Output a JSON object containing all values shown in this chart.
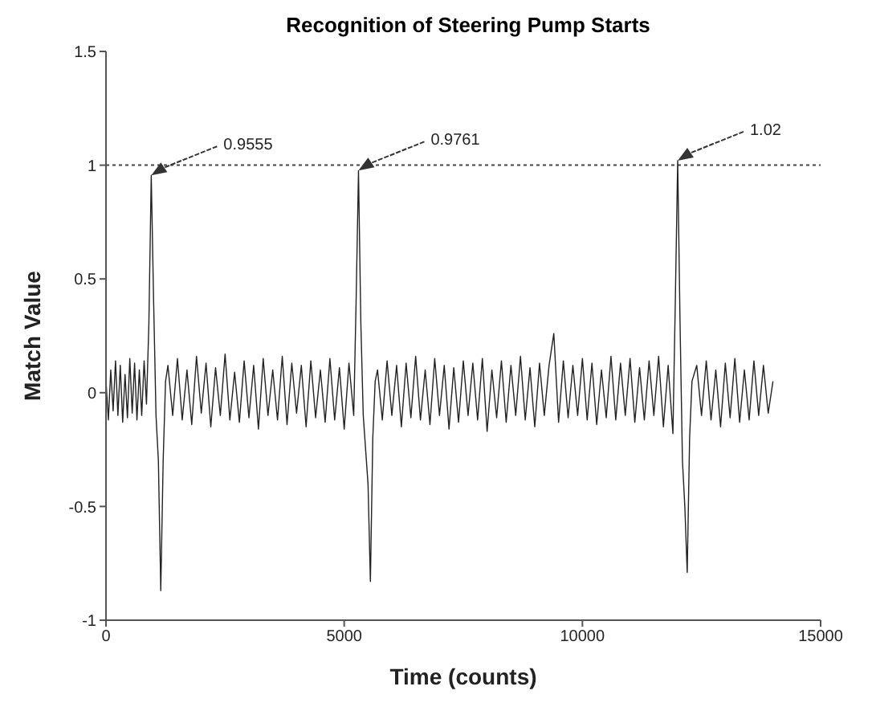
{
  "chart_data": {
    "type": "line",
    "title": "Recognition of Steering Pump Starts",
    "xlabel": "Time (counts)",
    "ylabel": "Match Value",
    "x": [
      0,
      50,
      100,
      150,
      200,
      250,
      300,
      350,
      400,
      450,
      500,
      550,
      600,
      650,
      700,
      750,
      800,
      850,
      900,
      950,
      1000,
      1050,
      1100,
      1150,
      1200,
      1250,
      1300,
      1400,
      1500,
      1600,
      1700,
      1800,
      1900,
      2000,
      2100,
      2200,
      2300,
      2400,
      2500,
      2600,
      2700,
      2800,
      2900,
      3000,
      3100,
      3200,
      3300,
      3400,
      3500,
      3600,
      3700,
      3800,
      3900,
      4000,
      4100,
      4200,
      4300,
      4400,
      4500,
      4600,
      4700,
      4800,
      4900,
      5000,
      5100,
      5200,
      5250,
      5300,
      5350,
      5400,
      5500,
      5550,
      5600,
      5650,
      5700,
      5800,
      5900,
      6000,
      6100,
      6200,
      6300,
      6400,
      6500,
      6600,
      6700,
      6800,
      6900,
      7000,
      7100,
      7200,
      7300,
      7400,
      7500,
      7600,
      7700,
      7800,
      7900,
      8000,
      8100,
      8200,
      8300,
      8400,
      8500,
      8600,
      8700,
      8800,
      8900,
      9000,
      9100,
      9200,
      9300,
      9400,
      9500,
      9600,
      9700,
      9800,
      9900,
      10000,
      10100,
      10200,
      10300,
      10400,
      10500,
      10600,
      10700,
      10800,
      10900,
      11000,
      11100,
      11200,
      11300,
      11400,
      11500,
      11600,
      11700,
      11800,
      11900,
      11950,
      12000,
      12050,
      12100,
      12150,
      12200,
      12250,
      12300,
      12400,
      12500,
      12600,
      12700,
      12800,
      12900,
      13000,
      13100,
      13200,
      13300,
      13400,
      13500,
      13600,
      13700,
      13800,
      13900,
      14000
    ],
    "series": [
      {
        "color": "#222222",
        "values": [
          0.05,
          -0.12,
          0.1,
          -0.08,
          0.14,
          -0.1,
          0.12,
          -0.13,
          0.08,
          -0.11,
          0.15,
          -0.09,
          0.13,
          -0.12,
          0.1,
          -0.1,
          0.14,
          -0.05,
          0.3,
          0.9555,
          0.4,
          -0.1,
          -0.3,
          -0.87,
          -0.3,
          0.05,
          0.12,
          -0.1,
          0.15,
          -0.12,
          0.1,
          -0.14,
          0.16,
          -0.09,
          0.13,
          -0.15,
          0.11,
          -0.1,
          0.17,
          -0.12,
          0.09,
          -0.13,
          0.14,
          -0.11,
          0.12,
          -0.16,
          0.15,
          -0.1,
          0.1,
          -0.12,
          0.16,
          -0.14,
          0.13,
          -0.09,
          0.12,
          -0.15,
          0.14,
          -0.11,
          0.1,
          -0.13,
          0.15,
          -0.12,
          0.11,
          -0.16,
          0.13,
          -0.1,
          0.4,
          0.9761,
          0.3,
          -0.1,
          -0.4,
          -0.83,
          -0.2,
          0.05,
          0.1,
          -0.12,
          0.14,
          -0.1,
          0.12,
          -0.15,
          0.13,
          -0.11,
          0.16,
          -0.12,
          0.1,
          -0.14,
          0.15,
          -0.1,
          0.12,
          -0.16,
          0.11,
          -0.13,
          0.14,
          -0.1,
          0.13,
          -0.12,
          0.15,
          -0.17,
          0.1,
          -0.11,
          0.14,
          -0.13,
          0.12,
          -0.1,
          0.16,
          -0.12,
          0.11,
          -0.15,
          0.13,
          -0.1,
          0.12,
          0.26,
          -0.13,
          0.14,
          -0.11,
          0.12,
          -0.1,
          0.15,
          -0.12,
          0.13,
          -0.14,
          0.1,
          -0.11,
          0.16,
          -0.12,
          0.13,
          -0.1,
          0.15,
          -0.13,
          0.11,
          -0.12,
          0.14,
          -0.1,
          0.16,
          -0.15,
          0.12,
          -0.18,
          0.4,
          1.02,
          0.3,
          -0.3,
          -0.5,
          -0.79,
          -0.2,
          0.05,
          0.12,
          -0.1,
          0.14,
          -0.12,
          0.1,
          -0.15,
          0.13,
          -0.11,
          0.15,
          -0.13,
          0.1,
          -0.12,
          0.14,
          -0.1,
          0.12,
          -0.09,
          0.05
        ]
      }
    ],
    "xlim": [
      0,
      15000
    ],
    "xticks": [
      0,
      5000,
      10000,
      15000
    ],
    "ylim": [
      -1,
      1.5
    ],
    "yticks": [
      -1,
      -0.5,
      0,
      0.5,
      1,
      1.5
    ],
    "marker": "none",
    "line_style": "solid",
    "ref_lines": [
      {
        "axis": "y",
        "value": 1,
        "color": "#444444",
        "line_style": "dotted"
      }
    ],
    "annotations": [
      {
        "text": "0.9555",
        "x": 950,
        "y": 0.9555
      },
      {
        "text": "0.9761",
        "x": 5300,
        "y": 0.9761
      },
      {
        "text": "1.02",
        "x": 12000,
        "y": 1.02
      }
    ]
  }
}
